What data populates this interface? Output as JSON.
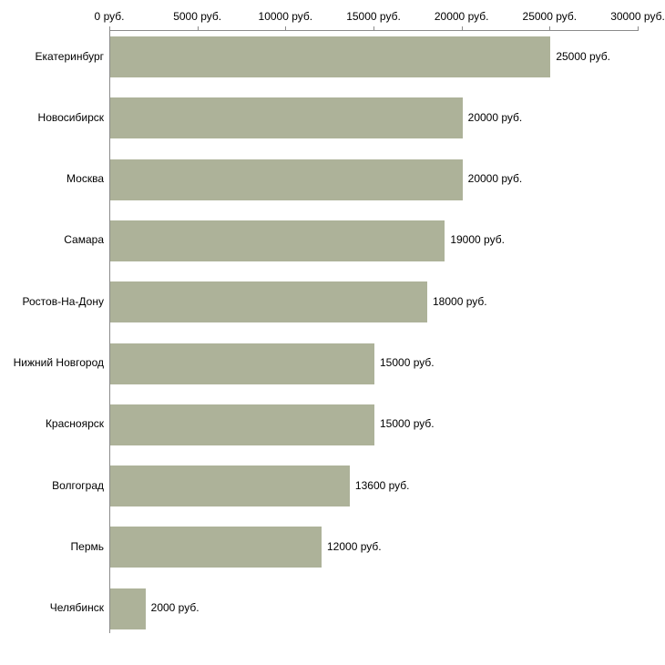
{
  "chart_data": {
    "type": "bar",
    "orientation": "horizontal",
    "title": "",
    "xlabel": "",
    "ylabel": "",
    "xlim": [
      0,
      30000
    ],
    "grid": false,
    "legend": "none",
    "axis_position": "top",
    "bar_color": "#adb299",
    "axis_color": "#8b8b8b",
    "tick_values": [
      0,
      5000,
      10000,
      15000,
      20000,
      25000,
      30000
    ],
    "tick_labels": [
      "0 руб.",
      "5000 руб.",
      "10000 руб.",
      "15000 руб.",
      "20000 руб.",
      "25000 руб.",
      "30000 руб."
    ],
    "categories": [
      "Екатеринбург",
      "Новосибирск",
      "Москва",
      "Самара",
      "Ростов-На-Дону",
      "Нижний Новгород",
      "Красноярск",
      "Волгоград",
      "Пермь",
      "Челябинск"
    ],
    "values": [
      25000,
      20000,
      20000,
      19000,
      18000,
      15000,
      15000,
      13600,
      12000,
      2000
    ],
    "value_labels": [
      "25000 руб.",
      "20000 руб.",
      "20000 руб.",
      "19000 руб.",
      "18000 руб.",
      "15000 руб.",
      "15000 руб.",
      "13600 руб.",
      "12000 руб.",
      "2000 руб."
    ]
  }
}
